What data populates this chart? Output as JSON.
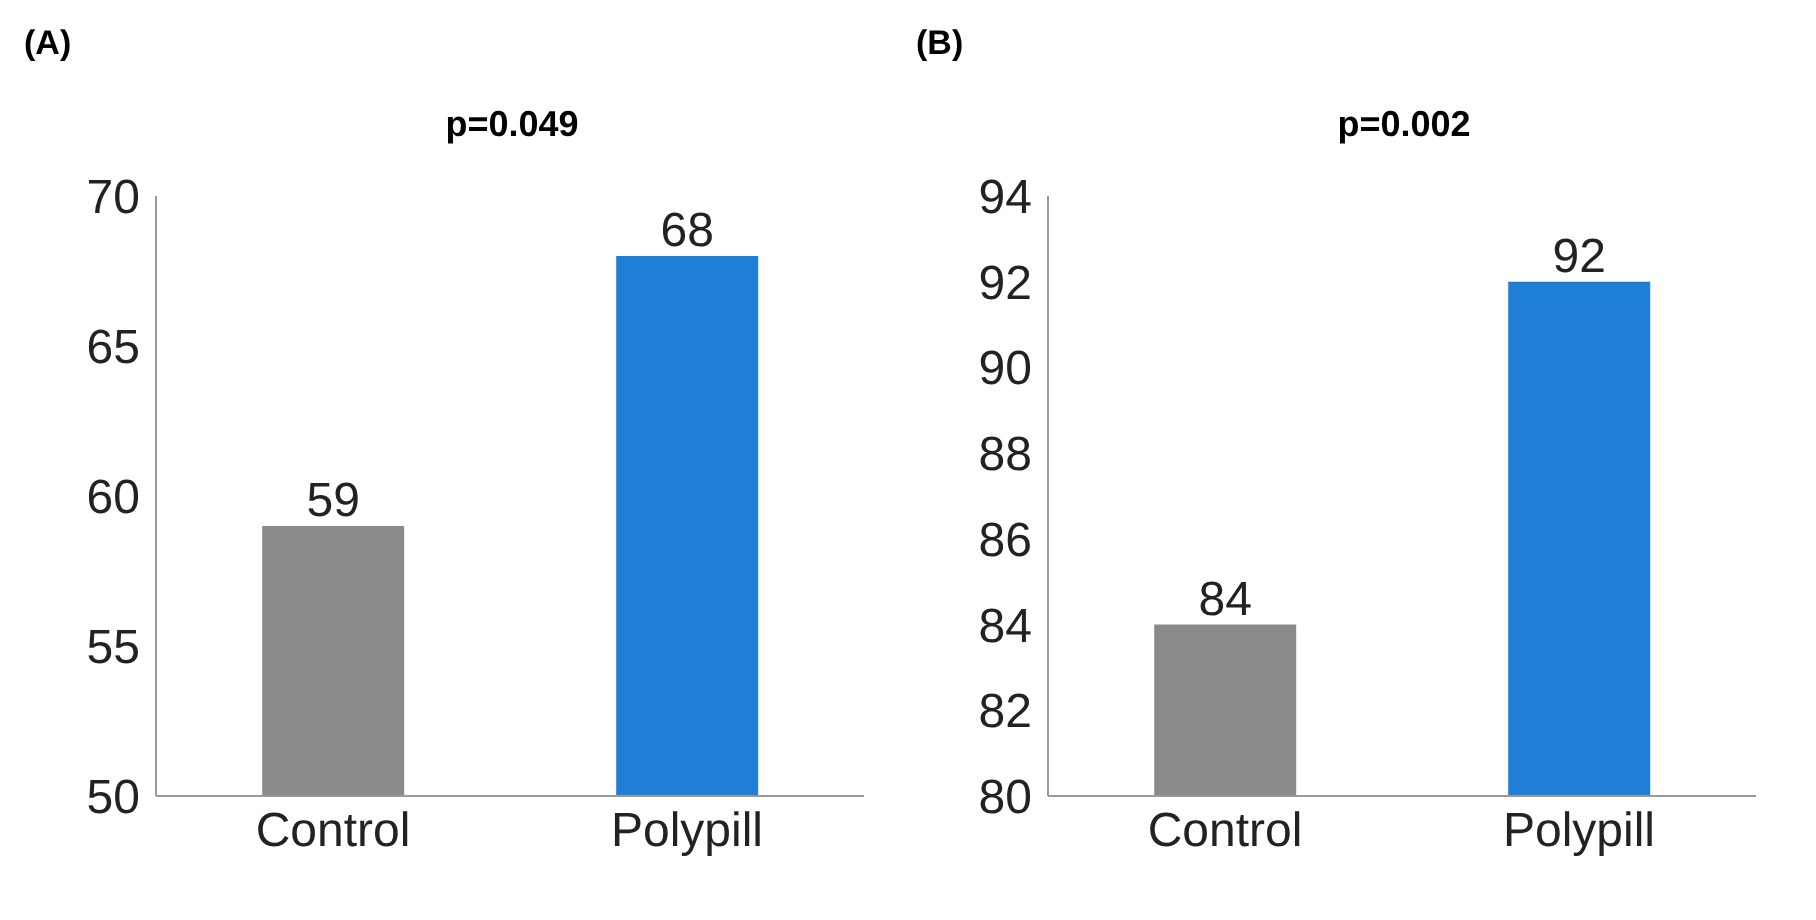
{
  "chart_data": [
    {
      "type": "bar",
      "title": "p=0.049",
      "annotations": [
        "(A)"
      ],
      "categories": [
        "Control",
        "Polypill"
      ],
      "values": [
        59,
        68
      ],
      "colors": [
        "#8a8a8a",
        "#1f7fd6"
      ],
      "ylim": [
        50,
        70
      ],
      "yticks": [
        50,
        55,
        60,
        65,
        70
      ],
      "data_labels": true
    },
    {
      "type": "bar",
      "title": "p=0.002",
      "annotations": [
        "(B)"
      ],
      "categories": [
        "Control",
        "Polypill"
      ],
      "values": [
        84,
        92
      ],
      "colors": [
        "#8a8a8a",
        "#1f7fd6"
      ],
      "ylim": [
        80,
        94
      ],
      "yticks": [
        80,
        82,
        84,
        86,
        88,
        90,
        92,
        94
      ],
      "data_labels": true
    }
  ]
}
